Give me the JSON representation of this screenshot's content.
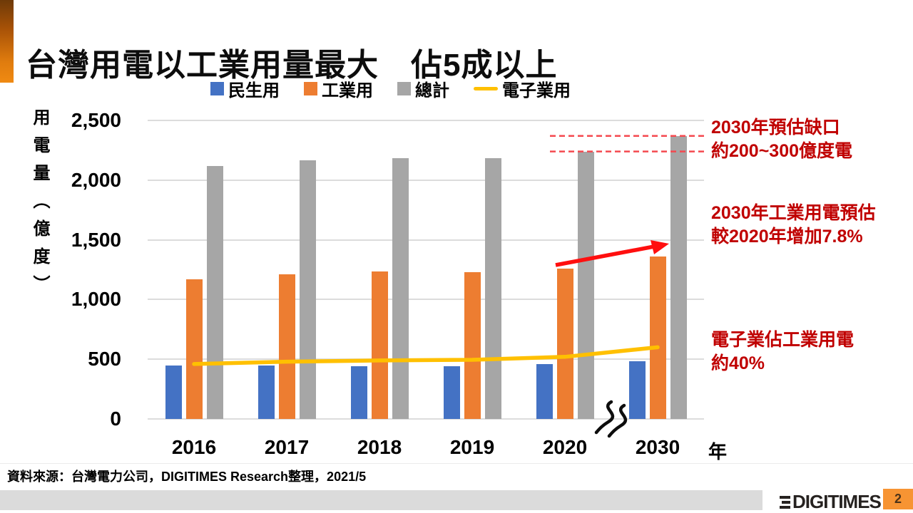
{
  "header": {
    "title": "台灣用電以工業用量最大　佔5成以上"
  },
  "chart_data": {
    "type": "bar",
    "title": "",
    "categories": [
      "2016",
      "2017",
      "2018",
      "2019",
      "2020",
      "2030"
    ],
    "x_axis_unit": "年",
    "ylabel": "用電量（億度）",
    "xlabel": "年",
    "ylim": [
      0,
      2500
    ],
    "grid": true,
    "legend_position": "top",
    "axis_break_between": [
      "2020",
      "2030"
    ],
    "yticks": [
      {
        "value": 0,
        "label": "0"
      },
      {
        "value": 500,
        "label": "500"
      },
      {
        "value": 1000,
        "label": "1,000"
      },
      {
        "value": 1500,
        "label": "1,500"
      },
      {
        "value": 2000,
        "label": "2,000"
      },
      {
        "value": 2500,
        "label": "2,500"
      }
    ],
    "series": [
      {
        "name": "民生用",
        "type": "bar",
        "color": "#4472C4",
        "values": [
          450,
          450,
          440,
          440,
          460,
          485
        ]
      },
      {
        "name": "工業用",
        "type": "bar",
        "color": "#ED7D31",
        "values": [
          1170,
          1210,
          1235,
          1230,
          1260,
          1360
        ]
      },
      {
        "name": "總計",
        "type": "bar",
        "color": "#A6A6A6",
        "values": [
          2120,
          2165,
          2185,
          2185,
          2240,
          2370
        ]
      },
      {
        "name": "電子業用",
        "type": "line",
        "color": "#FFC000",
        "values": [
          460,
          480,
          490,
          495,
          520,
          600
        ]
      }
    ],
    "guide_lines": {
      "values": [
        2370,
        2240
      ],
      "color": "#f4494f",
      "style": "dashed"
    }
  },
  "annotations": [
    {
      "line1": "2030年預估缺口",
      "line2": "約200~300億度電",
      "color": "#C00000"
    },
    {
      "line1": "2030年工業用電預估",
      "line2": "較2020年增加7.8%",
      "color": "#C00000"
    },
    {
      "line1": "電子業佔工業用電",
      "line2": "約40%",
      "color": "#C00000"
    }
  ],
  "footer": {
    "source": "資料來源：台灣電力公司，DIGITIMES Research整理，2021/5",
    "logo_text": "DIGITIMES",
    "page_number": "2"
  }
}
